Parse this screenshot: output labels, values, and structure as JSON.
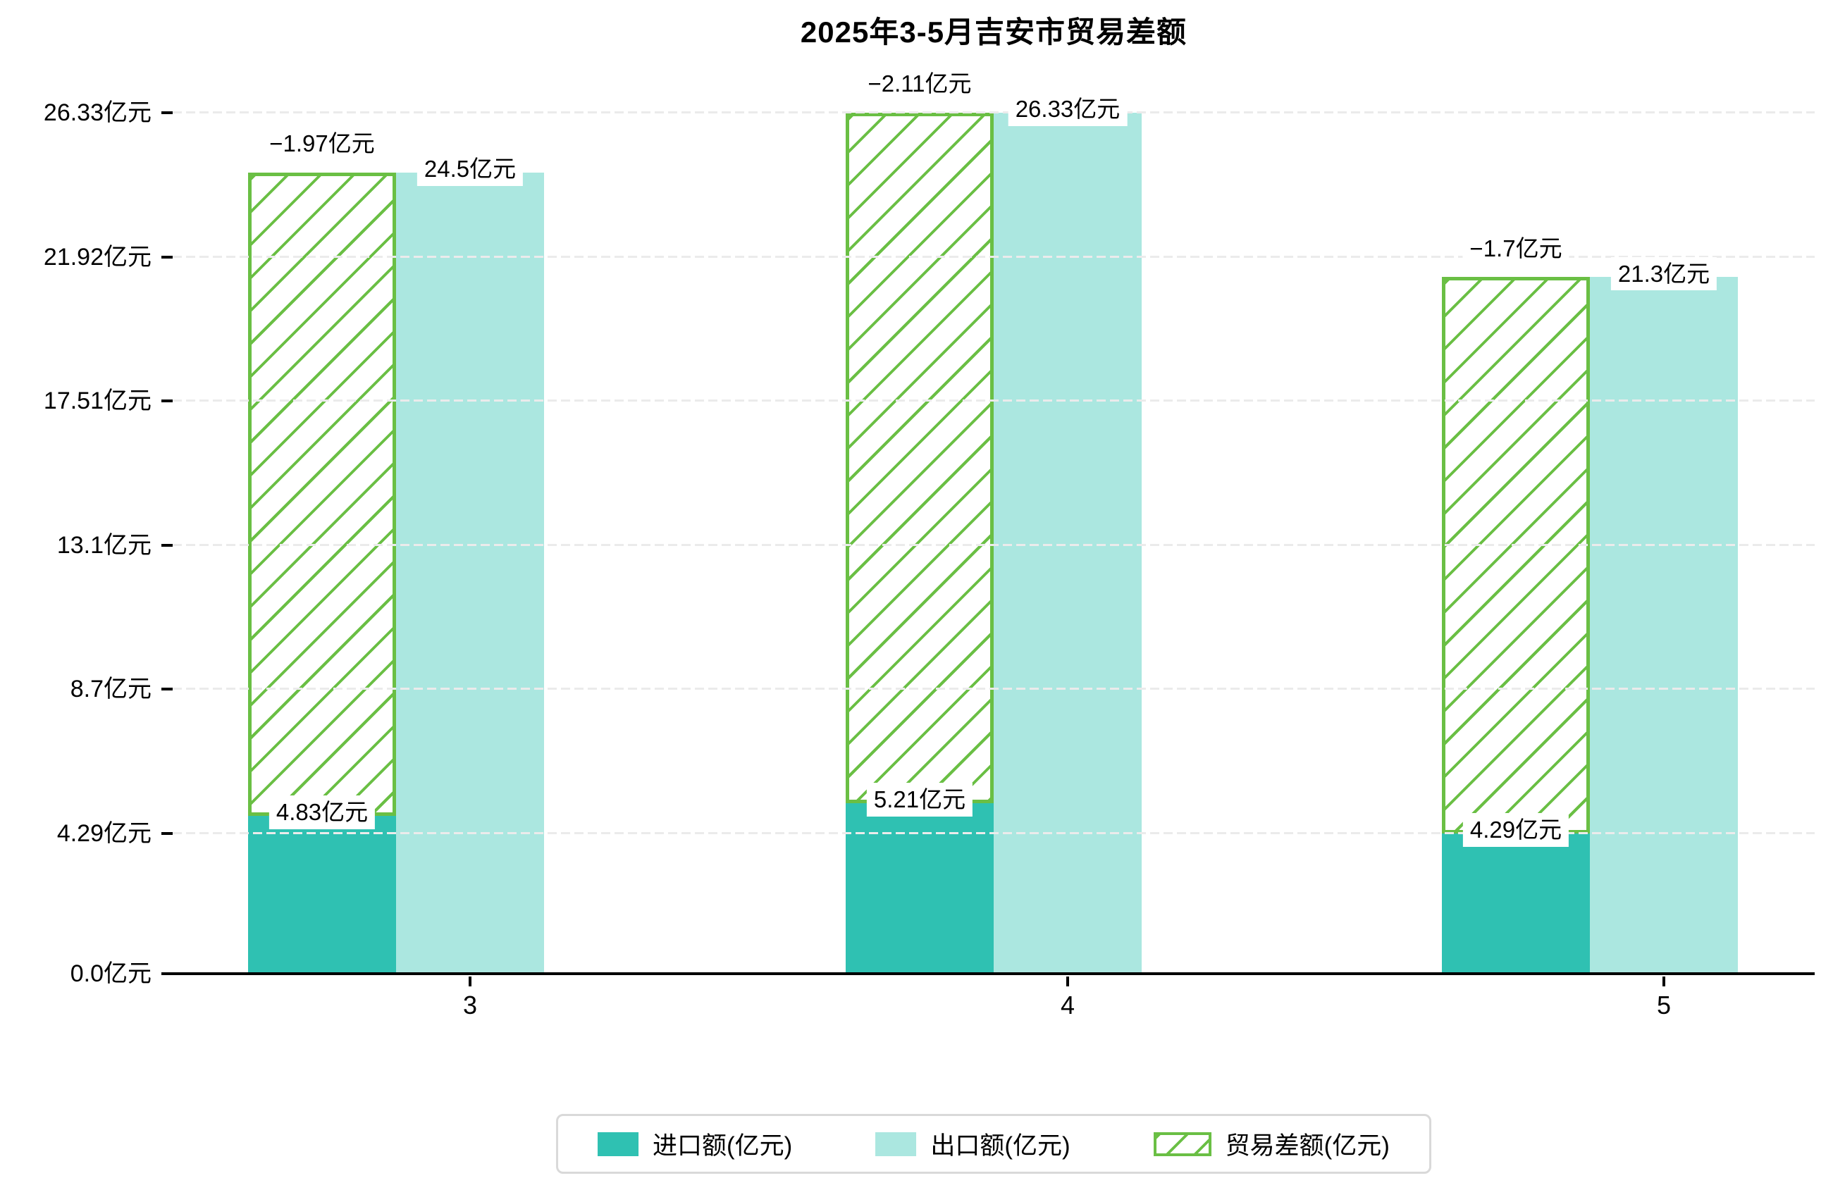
{
  "chart_data": {
    "type": "bar",
    "title": "2025年3-5月吉安市贸易差额",
    "categories": [
      "3",
      "4",
      "5"
    ],
    "series": [
      {
        "name": "进口额(亿元)",
        "values": [
          4.83,
          5.21,
          4.29
        ],
        "point_labels": [
          "4.83亿元",
          "5.21亿元",
          "4.29亿元"
        ],
        "color": "#2fc1b2",
        "style": "solid"
      },
      {
        "name": "出口额(亿元)",
        "values": [
          24.5,
          26.33,
          21.3
        ],
        "point_labels": [
          "24.5亿元",
          "26.33亿元",
          "21.3亿元"
        ],
        "color": "#abe7e0",
        "style": "solid"
      },
      {
        "name": "贸易差额(亿元)",
        "values": [
          -1.97,
          -2.11,
          -1.7
        ],
        "point_labels": [
          "−1.97亿元",
          "−2.11亿元",
          "−1.7亿元"
        ],
        "color": "#6abf44",
        "style": "hatched",
        "span_from_series": 0,
        "span_to_series": 1
      }
    ],
    "y_axis": {
      "unit": "亿元",
      "ylim": [
        0,
        26.33
      ],
      "ticks": [
        {
          "label": "0.0亿元",
          "value": 0
        },
        {
          "label": "4.29亿元",
          "value": 4.29
        },
        {
          "label": "8.7亿元",
          "value": 8.7
        },
        {
          "label": "13.1亿元",
          "value": 13.1
        },
        {
          "label": "17.51亿元",
          "value": 17.51
        },
        {
          "label": "21.92亿元",
          "value": 21.92
        },
        {
          "label": "26.33亿元",
          "value": 26.33
        }
      ]
    },
    "grid": {
      "style": "dashed",
      "color": "#ebebeb",
      "above_bars": true
    },
    "legend": {
      "position": "bottom-center"
    },
    "colors": {
      "axis": "#000000",
      "label_background": "#ffffff",
      "legend_border": "#d9d9d9"
    }
  }
}
